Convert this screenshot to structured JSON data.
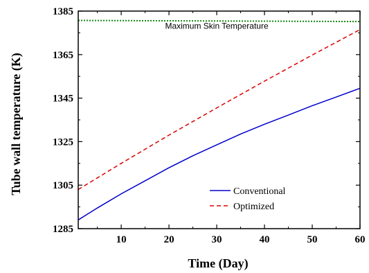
{
  "chart_data": {
    "type": "line",
    "xlabel": "Time (Day)",
    "ylabel": "Tube wall temperature (K)",
    "xlim": [
      1,
      60
    ],
    "ylim": [
      1285,
      1385
    ],
    "xticks": [
      10,
      20,
      30,
      40,
      50,
      60
    ],
    "yticks": [
      1285,
      1305,
      1325,
      1345,
      1365,
      1385
    ],
    "xtick_labels": [
      "10",
      "20",
      "30",
      "40",
      "50",
      "60"
    ],
    "ytick_labels": [
      "1285",
      "1305",
      "1325",
      "1345",
      "1365",
      "1385"
    ],
    "grid": false,
    "legend_position": "bottom-right",
    "series": [
      {
        "name": "Conventional",
        "color": "#0000cc",
        "style": "solid",
        "in_legend": true,
        "x": [
          1,
          5,
          10,
          15,
          20,
          25,
          30,
          35,
          40,
          45,
          50,
          55,
          60
        ],
        "values": [
          1289,
          1294.5,
          1301,
          1307,
          1313,
          1318.5,
          1323.5,
          1328.5,
          1333,
          1337.2,
          1341.5,
          1345.5,
          1349.5
        ]
      },
      {
        "name": "Optimized",
        "color": "#dd0000",
        "style": "dashed",
        "in_legend": true,
        "x": [
          1,
          10,
          20,
          30,
          40,
          50,
          60
        ],
        "values": [
          1303,
          1315,
          1328,
          1340.5,
          1352.8,
          1364.8,
          1376.5
        ]
      },
      {
        "name": "Maximum Skin Temperature",
        "color": "#118811",
        "style": "dotted",
        "in_legend": false,
        "x": [
          1,
          60
        ],
        "values": [
          1380.7,
          1380.2
        ]
      }
    ],
    "annotations": [
      {
        "text": "Maximum Skin Temperature",
        "x": 30,
        "y": 1376.8
      }
    ]
  }
}
